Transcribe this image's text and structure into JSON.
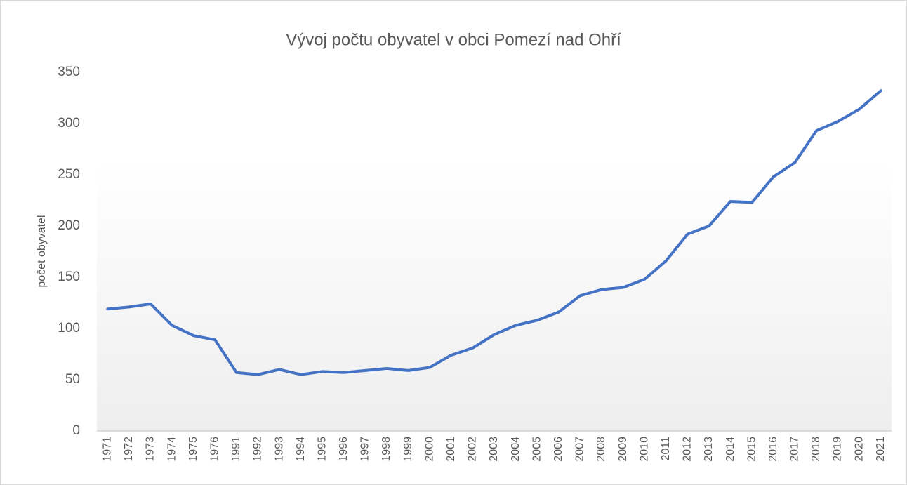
{
  "chart_data": {
    "type": "line",
    "title": "Vývoj počtu obyvatel v obci Pomezí nad Ohří",
    "y_label": "počet obyvatel",
    "categories": [
      "1971",
      "1972",
      "1973",
      "1974",
      "1975",
      "1976",
      "1991",
      "1992",
      "1993",
      "1994",
      "1995",
      "1996",
      "1997",
      "1998",
      "1999",
      "2000",
      "2001",
      "2002",
      "2003",
      "2004",
      "2005",
      "2006",
      "2007",
      "2008",
      "2009",
      "2010",
      "2011",
      "2012",
      "2013",
      "2014",
      "2015",
      "2016",
      "2017",
      "2018",
      "2019",
      "2020",
      "2021"
    ],
    "series": [
      {
        "name": "počet obyvatel",
        "color": "#4472c4",
        "values": [
          119,
          121,
          124,
          103,
          93,
          89,
          57,
          55,
          60,
          55,
          58,
          57,
          59,
          61,
          59,
          62,
          74,
          81,
          94,
          103,
          108,
          116,
          132,
          138,
          140,
          148,
          166,
          192,
          200,
          224,
          223,
          248,
          262,
          293,
          302,
          314,
          332
        ]
      }
    ],
    "ylim": [
      0,
      350
    ],
    "yticks": [
      0,
      50,
      100,
      150,
      200,
      250,
      300,
      350
    ],
    "grid": false
  }
}
